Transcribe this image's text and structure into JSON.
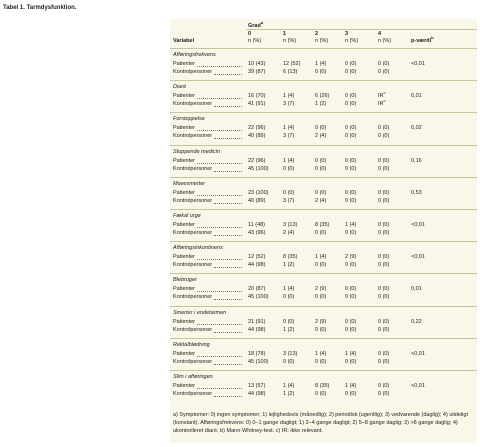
{
  "title": "Tabel 1. Tarmdysfunktion.",
  "table": {
    "header": {
      "grade": "Grad",
      "grade_sup": "a",
      "variable": "Variabel",
      "cols": [
        "0",
        "1",
        "2",
        "3",
        "4"
      ],
      "unit": "n (%)",
      "p": "p-værdi",
      "p_sup": "b"
    },
    "groups": [
      {
        "name": "Afføringsfrekvens",
        "rows": [
          {
            "label": "Patienter",
            "cells": [
              "10 (43)",
              "12 (52)",
              "1 (4)",
              "0 (0)",
              "0 (0)"
            ],
            "p": "<0,01"
          },
          {
            "label": "Kontrolpersoner",
            "cells": [
              "39 (87)",
              "6 (13)",
              "0 (0)",
              "0 (0)",
              "0 (0)"
            ]
          }
        ]
      },
      {
        "name": "Diaré",
        "rows": [
          {
            "label": "Patienter",
            "cells": [
              "16 (70)",
              "1 (4)",
              "6 (26)",
              "0 (0)",
              {
                "text": "IR",
                "sup": "c"
              }
            ],
            "p": "0,01"
          },
          {
            "label": "Kontrolpersoner",
            "cells": [
              "41 (91)",
              "3 (7)",
              "1 (2)",
              "0 (0)",
              {
                "text": "IR",
                "sup": "c"
              }
            ]
          }
        ]
      },
      {
        "name": "Forstoppelse",
        "rows": [
          {
            "label": "Patienter",
            "cells": [
              "22 (96)",
              "1 (4)",
              "0 (0)",
              "0 (0)",
              "0 (0)"
            ],
            "p": "0,02"
          },
          {
            "label": "Kontrolpersoner",
            "cells": [
              "40 (89)",
              "3 (7)",
              "2 (4)",
              "0 (0)",
              "0 (0)"
            ]
          }
        ]
      },
      {
        "name": "Stoppende medicin",
        "rows": [
          {
            "label": "Patienter",
            "cells": [
              "22 (96)",
              "1 (4)",
              "0 (0)",
              "0 (0)",
              "0 (0)"
            ],
            "p": "0,16"
          },
          {
            "label": "Kontrolpersoner",
            "cells": [
              "45 (100)",
              "0 (0)",
              "0 (0)",
              "0 (0)",
              "0 (0)"
            ]
          }
        ]
      },
      {
        "name": "Mavesmerter",
        "rows": [
          {
            "label": "Patienter",
            "cells": [
              "23 (100)",
              "0 (0)",
              "0 (0)",
              "0 (0)",
              "0 (0)"
            ],
            "p": "0,53"
          },
          {
            "label": "Kontrolpersoner",
            "cells": [
              "40 (89)",
              "3 (7)",
              "2 (4)",
              "0 (0)",
              "0 (0)"
            ]
          }
        ]
      },
      {
        "name": "Fækal urge",
        "rows": [
          {
            "label": "Patienter",
            "cells": [
              "11 (48)",
              "3 (13)",
              "8 (35)",
              "1 (4)",
              "0 (0)"
            ],
            "p": "<0,01"
          },
          {
            "label": "Kontrolpersoner",
            "cells": [
              "43 (96)",
              "2 (4)",
              "0 (0)",
              "0 (0)",
              "0 (0)"
            ]
          }
        ]
      },
      {
        "name": "Afføringsinkontinens",
        "rows": [
          {
            "label": "Patienter",
            "cells": [
              "12 (52)",
              "8 (35)",
              "1 (4)",
              "2 (9)",
              "0 (0)"
            ],
            "p": "<0,01"
          },
          {
            "label": "Kontrolpersoner",
            "cells": [
              "44 (98)",
              "1 (2)",
              "0 (0)",
              "0 (0)",
              "0 (0)"
            ]
          }
        ]
      },
      {
        "name": "Blebruger",
        "rows": [
          {
            "label": "Patienter",
            "cells": [
              "20 (87)",
              "1 (4)",
              "2 (9)",
              "0 (0)",
              "0 (0)"
            ],
            "p": "0,01"
          },
          {
            "label": "Kontrolpersoner",
            "cells": [
              "45 (100)",
              "0 (0)",
              "0 (0)",
              "0 (0)",
              "0 (0)"
            ]
          }
        ]
      },
      {
        "name": "Smerter i endetarmen",
        "rows": [
          {
            "label": "Patienter",
            "cells": [
              "21 (91)",
              "0 (0)",
              "2 (9)",
              "0 (0)",
              "0 (0)"
            ],
            "p": "0,22"
          },
          {
            "label": "Kontrolpersoner",
            "cells": [
              "44 (98)",
              "1 (2)",
              "0 (0)",
              "0 (0)",
              "0 (0)"
            ]
          }
        ]
      },
      {
        "name": "Rektalblødning",
        "rows": [
          {
            "label": "Patienter",
            "cells": [
              "18 (78)",
              "3 (13)",
              "1 (4)",
              "1 (4)",
              "0 (0)"
            ],
            "p": "<0,01"
          },
          {
            "label": "Kontrolpersoner",
            "cells": [
              "45 (100)",
              "0 (0)",
              "0 (0)",
              "0 (0)",
              "0 (0)"
            ]
          }
        ]
      },
      {
        "name": "Slim i afføringen",
        "rows": [
          {
            "label": "Patienter",
            "cells": [
              "13 (57)",
              "1 (4)",
              "8 (35)",
              "1 (4)",
              "0 (0)"
            ],
            "p": "<0,01"
          },
          {
            "label": "Kontrolpersoner",
            "cells": [
              "44 (98)",
              "1 (2)",
              "0 (0)",
              "0 (0)",
              "0 (0)"
            ]
          }
        ]
      }
    ]
  },
  "footnote": "a) Symptomer: 0) ingen symptomer; 1) lejlighedsvis (månedlig); 2) periodisk (ugentlig); 3) vedvarende (daglig); 4) ulideligt (konstant). Afføringsfrekvens: 0) 0–1 gange dagligt; 1) 2–4 gange dagligt; 2) 5–8 gange daglig; 3) >8 gange daglig; 4) ukontrolleret diaré. b) Mann-Whitney-test. c) IR: ikke relevant."
}
